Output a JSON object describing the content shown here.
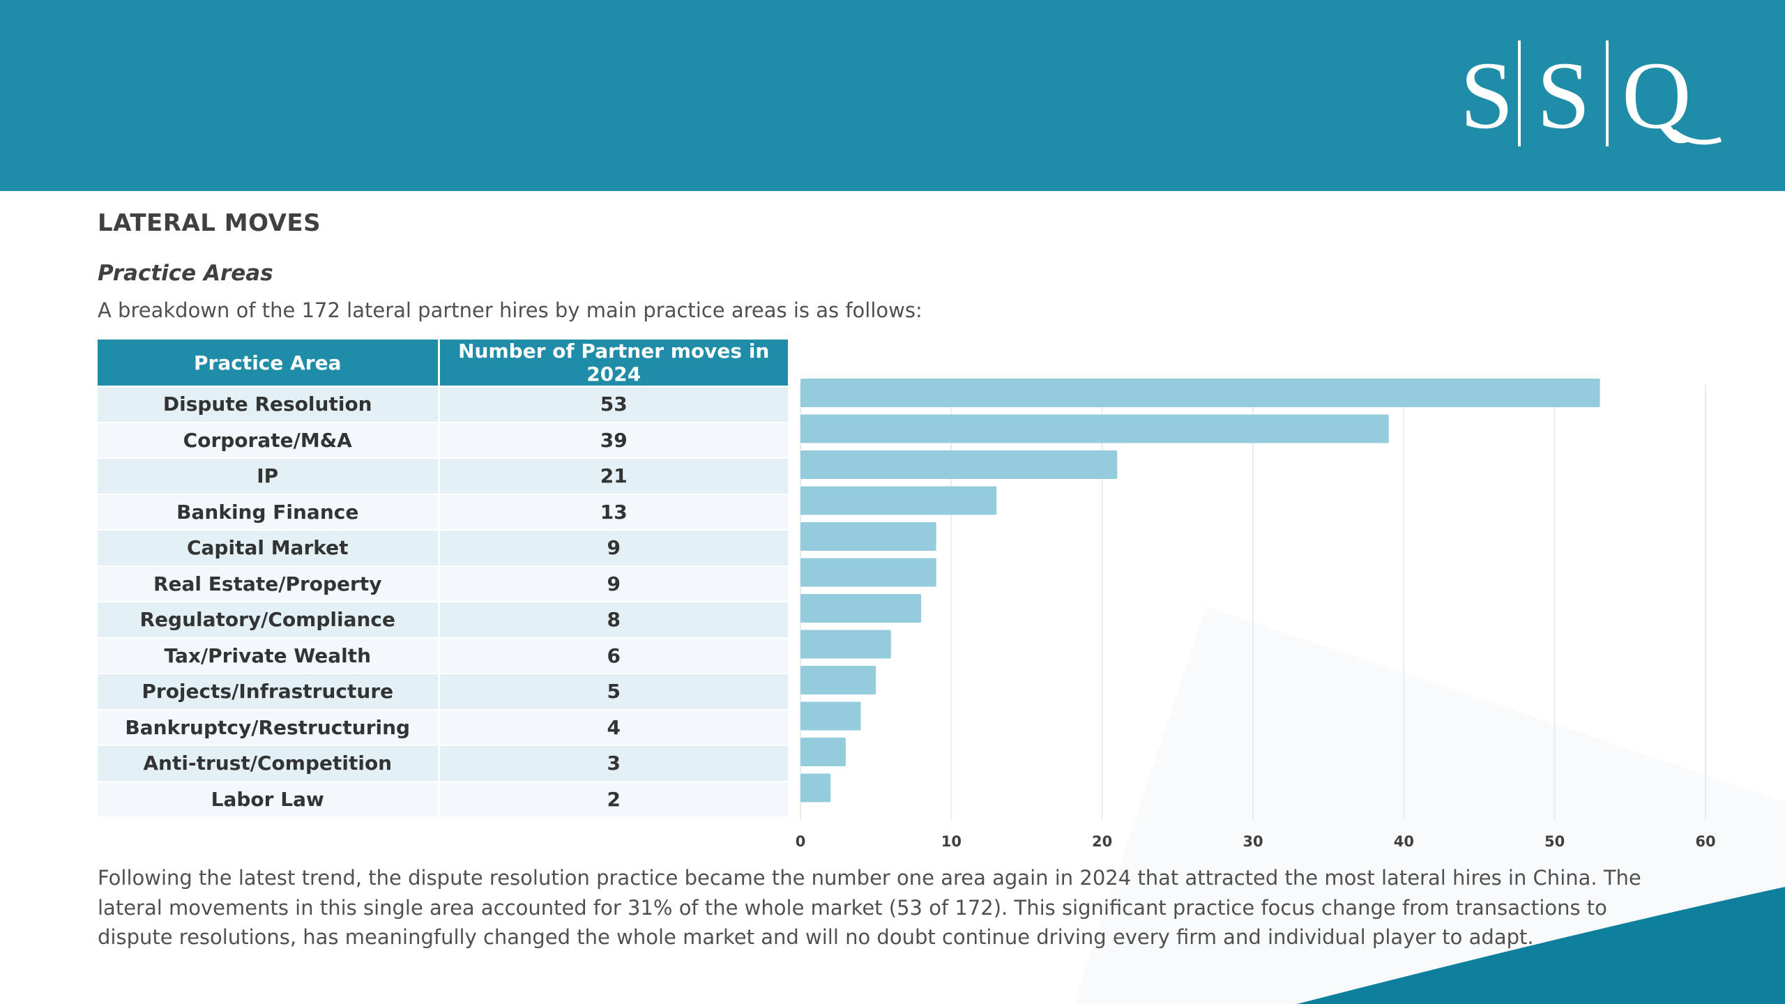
{
  "header": {
    "logo_text": "S|S|Q"
  },
  "page": {
    "heading": "LATERAL MOVES",
    "subheading": "Practice Areas",
    "intro": "A breakdown of the 172 lateral partner hires by main practice areas is as follows:",
    "conclusion": "Following the latest trend, the dispute resolution practice became the number one area again in 2024 that attracted the most lateral hires in China. The lateral movements in this single area accounted for 31% of the whole market (53 of 172). This significant practice focus change from transactions to dispute resolutions, has meaningfully changed the whole market and will no doubt continue driving every firm and individual player to adapt."
  },
  "table": {
    "headers": [
      "Practice Area",
      "Number of Partner moves in 2024"
    ],
    "rows": [
      [
        "Dispute Resolution",
        "53"
      ],
      [
        "Corporate/M&A",
        "39"
      ],
      [
        "IP",
        "21"
      ],
      [
        "Banking Finance",
        "13"
      ],
      [
        "Capital Market",
        "9"
      ],
      [
        "Real Estate/Property",
        "9"
      ],
      [
        "Regulatory/Compliance",
        "8"
      ],
      [
        "Tax/Private Wealth",
        "6"
      ],
      [
        "Projects/Infrastructure",
        "5"
      ],
      [
        "Bankruptcy/Restructuring",
        "4"
      ],
      [
        "Anti-trust/Competition",
        "3"
      ],
      [
        "Labor Law",
        "2"
      ]
    ]
  },
  "chart_data": {
    "type": "bar",
    "orientation": "horizontal",
    "categories": [
      "Dispute Resolution",
      "Corporate/M&A",
      "IP",
      "Banking Finance",
      "Capital Market",
      "Real Estate/Property",
      "Regulatory/Compliance",
      "Tax/Private Wealth",
      "Projects/Infrastructure",
      "Bankruptcy/Restructuring",
      "Anti-trust/Competition",
      "Labor Law"
    ],
    "values": [
      53,
      39,
      21,
      13,
      9,
      9,
      8,
      6,
      5,
      4,
      3,
      2
    ],
    "xlim": [
      0,
      60
    ],
    "xticks": [
      0,
      10,
      20,
      30,
      40,
      50,
      60
    ],
    "grid": true,
    "bar_color": "#94cbdd"
  },
  "colors": {
    "header_bg": "#1f8ca8",
    "table_header": "#1f8ca8",
    "row_odd": "#e3f1f7",
    "row_even": "#f2f8fb",
    "corner_accent": "#0e7f9c"
  }
}
